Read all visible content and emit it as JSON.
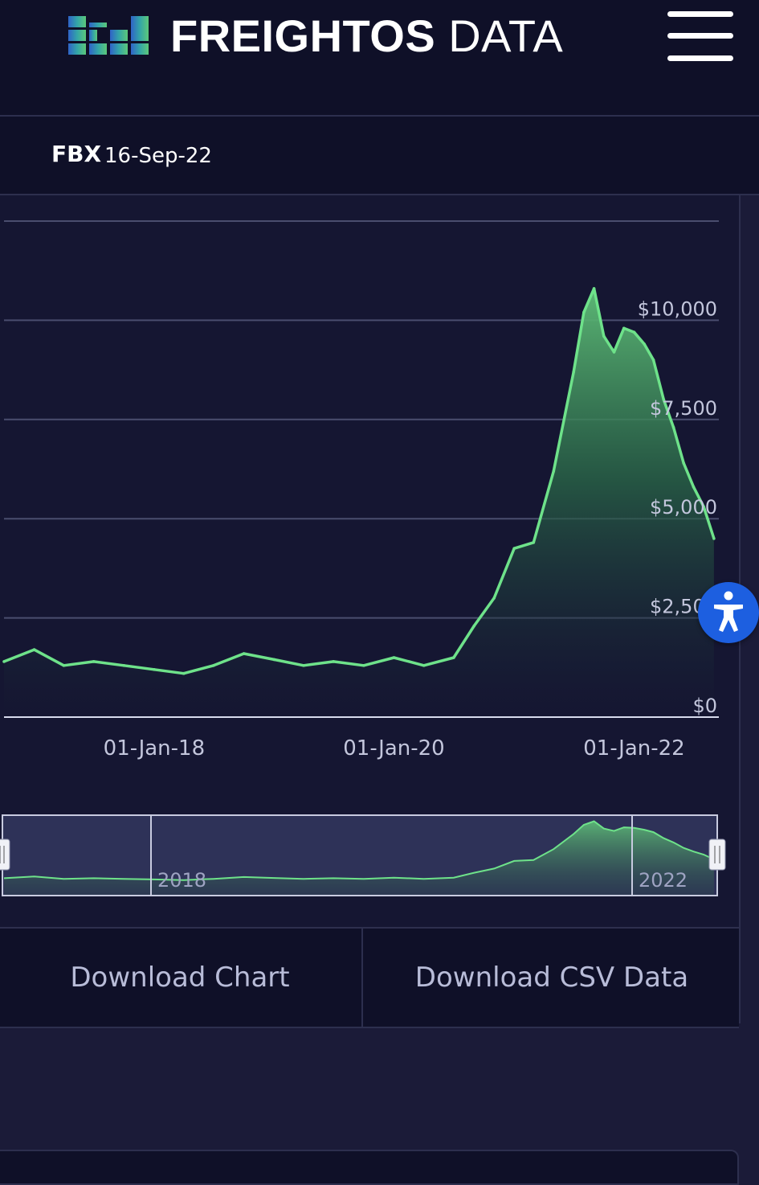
{
  "header": {
    "logo_bold": "FREIGHTOS",
    "logo_light": "DATA",
    "menu_icon": "hamburger-menu-icon"
  },
  "index_bar": {
    "label": "FBX",
    "date": "16-Sep-22"
  },
  "chart_data": {
    "type": "area",
    "series": [
      {
        "x": [
          "2016-10",
          "2017-01",
          "2017-04",
          "2017-07",
          "2017-10",
          "2018-01",
          "2018-04",
          "2018-07",
          "2018-10",
          "2019-01",
          "2019-04",
          "2019-07",
          "2019-10",
          "2020-01",
          "2020-04",
          "2020-07",
          "2020-09",
          "2020-11",
          "2021-01",
          "2021-03",
          "2021-05",
          "2021-07",
          "2021-08",
          "2021-09",
          "2021-10",
          "2021-11",
          "2021-12",
          "2022-01",
          "2022-02",
          "2022-03",
          "2022-04",
          "2022-05",
          "2022-06",
          "2022-07",
          "2022-08",
          "2022-09"
        ],
        "values": [
          1400,
          1700,
          1300,
          1400,
          1300,
          1200,
          1100,
          1300,
          1600,
          1450,
          1300,
          1400,
          1300,
          1500,
          1300,
          1500,
          2300,
          3000,
          4250,
          4400,
          6200,
          8700,
          10200,
          10800,
          9600,
          9200,
          9800,
          9700,
          9400,
          9000,
          8000,
          7300,
          6400,
          5800,
          5300,
          4500
        ]
      }
    ],
    "y_ticks": [
      "$10,000",
      "$7,500",
      "$5,000",
      "$2,500",
      "$0"
    ],
    "x_ticks": [
      "01-Jan-18",
      "01-Jan-20",
      "01-Jan-22"
    ],
    "ylim": [
      0,
      12500
    ],
    "grid": true,
    "navigator_labels": [
      "2018",
      "2022"
    ],
    "line_color": "#6ee28a"
  },
  "buttons": {
    "download_chart": "Download Chart",
    "download_csv": "Download CSV Data"
  },
  "accessibility": {
    "icon": "accessibility-icon",
    "color": "#1d5fe0"
  }
}
